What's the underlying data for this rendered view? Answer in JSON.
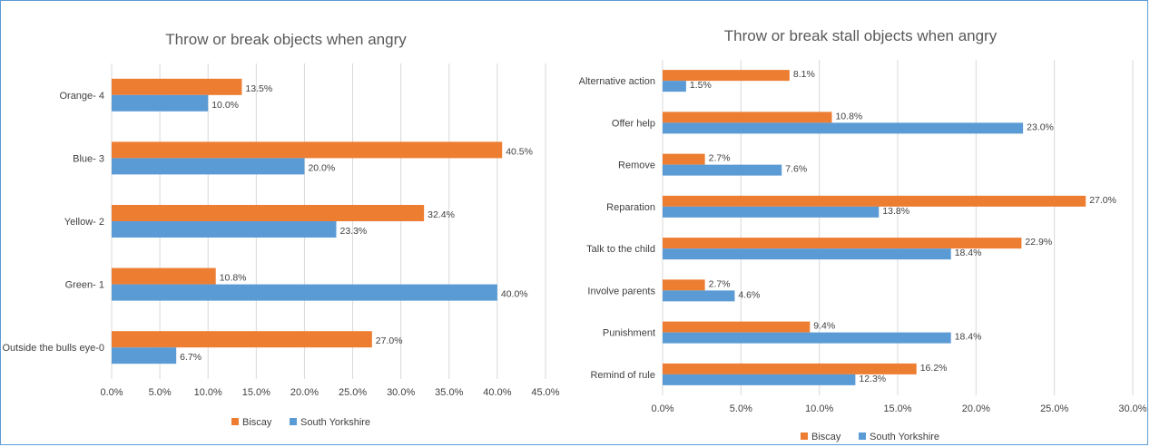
{
  "colors": {
    "biscay": "#ed7d31",
    "south_yorkshire": "#5b9bd5"
  },
  "chart_data": [
    {
      "type": "bar",
      "orientation": "horizontal",
      "title": "Throw or break objects when angry",
      "categories": [
        "Orange- 4",
        "Blue- 3",
        "Yellow- 2",
        "Green- 1",
        "Outside the bulls eye-0"
      ],
      "series": [
        {
          "name": "Biscay",
          "values": [
            13.5,
            40.5,
            32.4,
            10.8,
            27.0
          ],
          "labels": [
            "13.5%",
            "40.5%",
            "32.4%",
            "10.8%",
            "27.0%"
          ]
        },
        {
          "name": "South Yorkshire",
          "values": [
            10.0,
            20.0,
            23.3,
            40.0,
            6.7
          ],
          "labels": [
            "10.0%",
            "20.0%",
            "23.3%",
            "40.0%",
            "6.7%"
          ]
        }
      ],
      "xlim": [
        0,
        45
      ],
      "xticks": [
        0,
        5,
        10,
        15,
        20,
        25,
        30,
        35,
        40,
        45
      ],
      "xtick_labels": [
        "0.0%",
        "5.0%",
        "10.0%",
        "15.0%",
        "20.0%",
        "25.0%",
        "30.0%",
        "35.0%",
        "40.0%",
        "45.0%"
      ],
      "grid": true,
      "legend": "bottom"
    },
    {
      "type": "bar",
      "orientation": "horizontal",
      "title": "Throw or break stall objects when angry",
      "categories": [
        "Alternative action",
        "Offer help",
        "Remove",
        "Reparation",
        "Talk to the child",
        "Involve parents",
        "Punishment",
        "Remind of rule"
      ],
      "series": [
        {
          "name": "Biscay",
          "values": [
            8.1,
            10.8,
            2.7,
            27.0,
            22.9,
            2.7,
            9.4,
            16.2
          ],
          "labels": [
            "8.1%",
            "10.8%",
            "2.7%",
            "27.0%",
            "22.9%",
            "2.7%",
            "9.4%",
            "16.2%"
          ]
        },
        {
          "name": "South Yorkshire",
          "values": [
            1.5,
            23.0,
            7.6,
            13.8,
            18.4,
            4.6,
            18.4,
            12.3
          ],
          "labels": [
            "1.5%",
            "23.0%",
            "7.6%",
            "13.8%",
            "18.4%",
            "4.6%",
            "18.4%",
            "12.3%"
          ]
        }
      ],
      "xlim": [
        0,
        30
      ],
      "xticks": [
        0,
        5,
        10,
        15,
        20,
        25,
        30
      ],
      "xtick_labels": [
        "0.0%",
        "5.0%",
        "10.0%",
        "15.0%",
        "20.0%",
        "25.0%",
        "30.0%"
      ],
      "grid": true,
      "legend": "bottom"
    }
  ]
}
